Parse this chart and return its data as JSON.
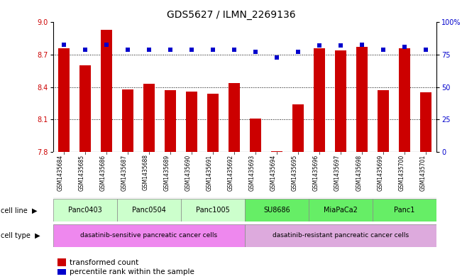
{
  "title": "GDS5627 / ILMN_2269136",
  "samples": [
    "GSM1435684",
    "GSM1435685",
    "GSM1435686",
    "GSM1435687",
    "GSM1435688",
    "GSM1435689",
    "GSM1435690",
    "GSM1435691",
    "GSM1435692",
    "GSM1435693",
    "GSM1435694",
    "GSM1435695",
    "GSM1435696",
    "GSM1435697",
    "GSM1435698",
    "GSM1435699",
    "GSM1435700",
    "GSM1435701"
  ],
  "transformed_counts": [
    8.76,
    8.6,
    8.93,
    8.38,
    8.43,
    8.37,
    8.36,
    8.34,
    8.44,
    8.11,
    7.81,
    8.24,
    8.76,
    8.74,
    8.77,
    8.37,
    8.76,
    8.35
  ],
  "percentile_ranks": [
    83,
    79,
    83,
    79,
    79,
    79,
    79,
    79,
    79,
    77,
    73,
    77,
    82,
    82,
    83,
    79,
    81,
    79
  ],
  "cell_lines": [
    {
      "name": "Panc0403",
      "start": 0,
      "end": 3,
      "color": "#ccffcc"
    },
    {
      "name": "Panc0504",
      "start": 3,
      "end": 6,
      "color": "#ccffcc"
    },
    {
      "name": "Panc1005",
      "start": 6,
      "end": 9,
      "color": "#ccffcc"
    },
    {
      "name": "SU8686",
      "start": 9,
      "end": 12,
      "color": "#66ee66"
    },
    {
      "name": "MiaPaCa2",
      "start": 12,
      "end": 15,
      "color": "#66ee66"
    },
    {
      "name": "Panc1",
      "start": 15,
      "end": 18,
      "color": "#66ee66"
    }
  ],
  "cell_types": [
    {
      "name": "dasatinib-sensitive pancreatic cancer cells",
      "start": 0,
      "end": 9,
      "color": "#ee88ee"
    },
    {
      "name": "dasatinib-resistant pancreatic cancer cells",
      "start": 9,
      "end": 18,
      "color": "#ddaadd"
    }
  ],
  "ylim_left": [
    7.8,
    9.0
  ],
  "ylim_right": [
    0,
    100
  ],
  "yticks_left": [
    7.8,
    8.1,
    8.4,
    8.7,
    9.0
  ],
  "yticks_right": [
    0,
    25,
    50,
    75,
    100
  ],
  "bar_color": "#cc0000",
  "dot_color": "#0000cc",
  "bar_width": 0.55,
  "legend_bar_label": "transformed count",
  "legend_dot_label": "percentile rank within the sample",
  "grid_lines": [
    8.1,
    8.4,
    8.7
  ]
}
